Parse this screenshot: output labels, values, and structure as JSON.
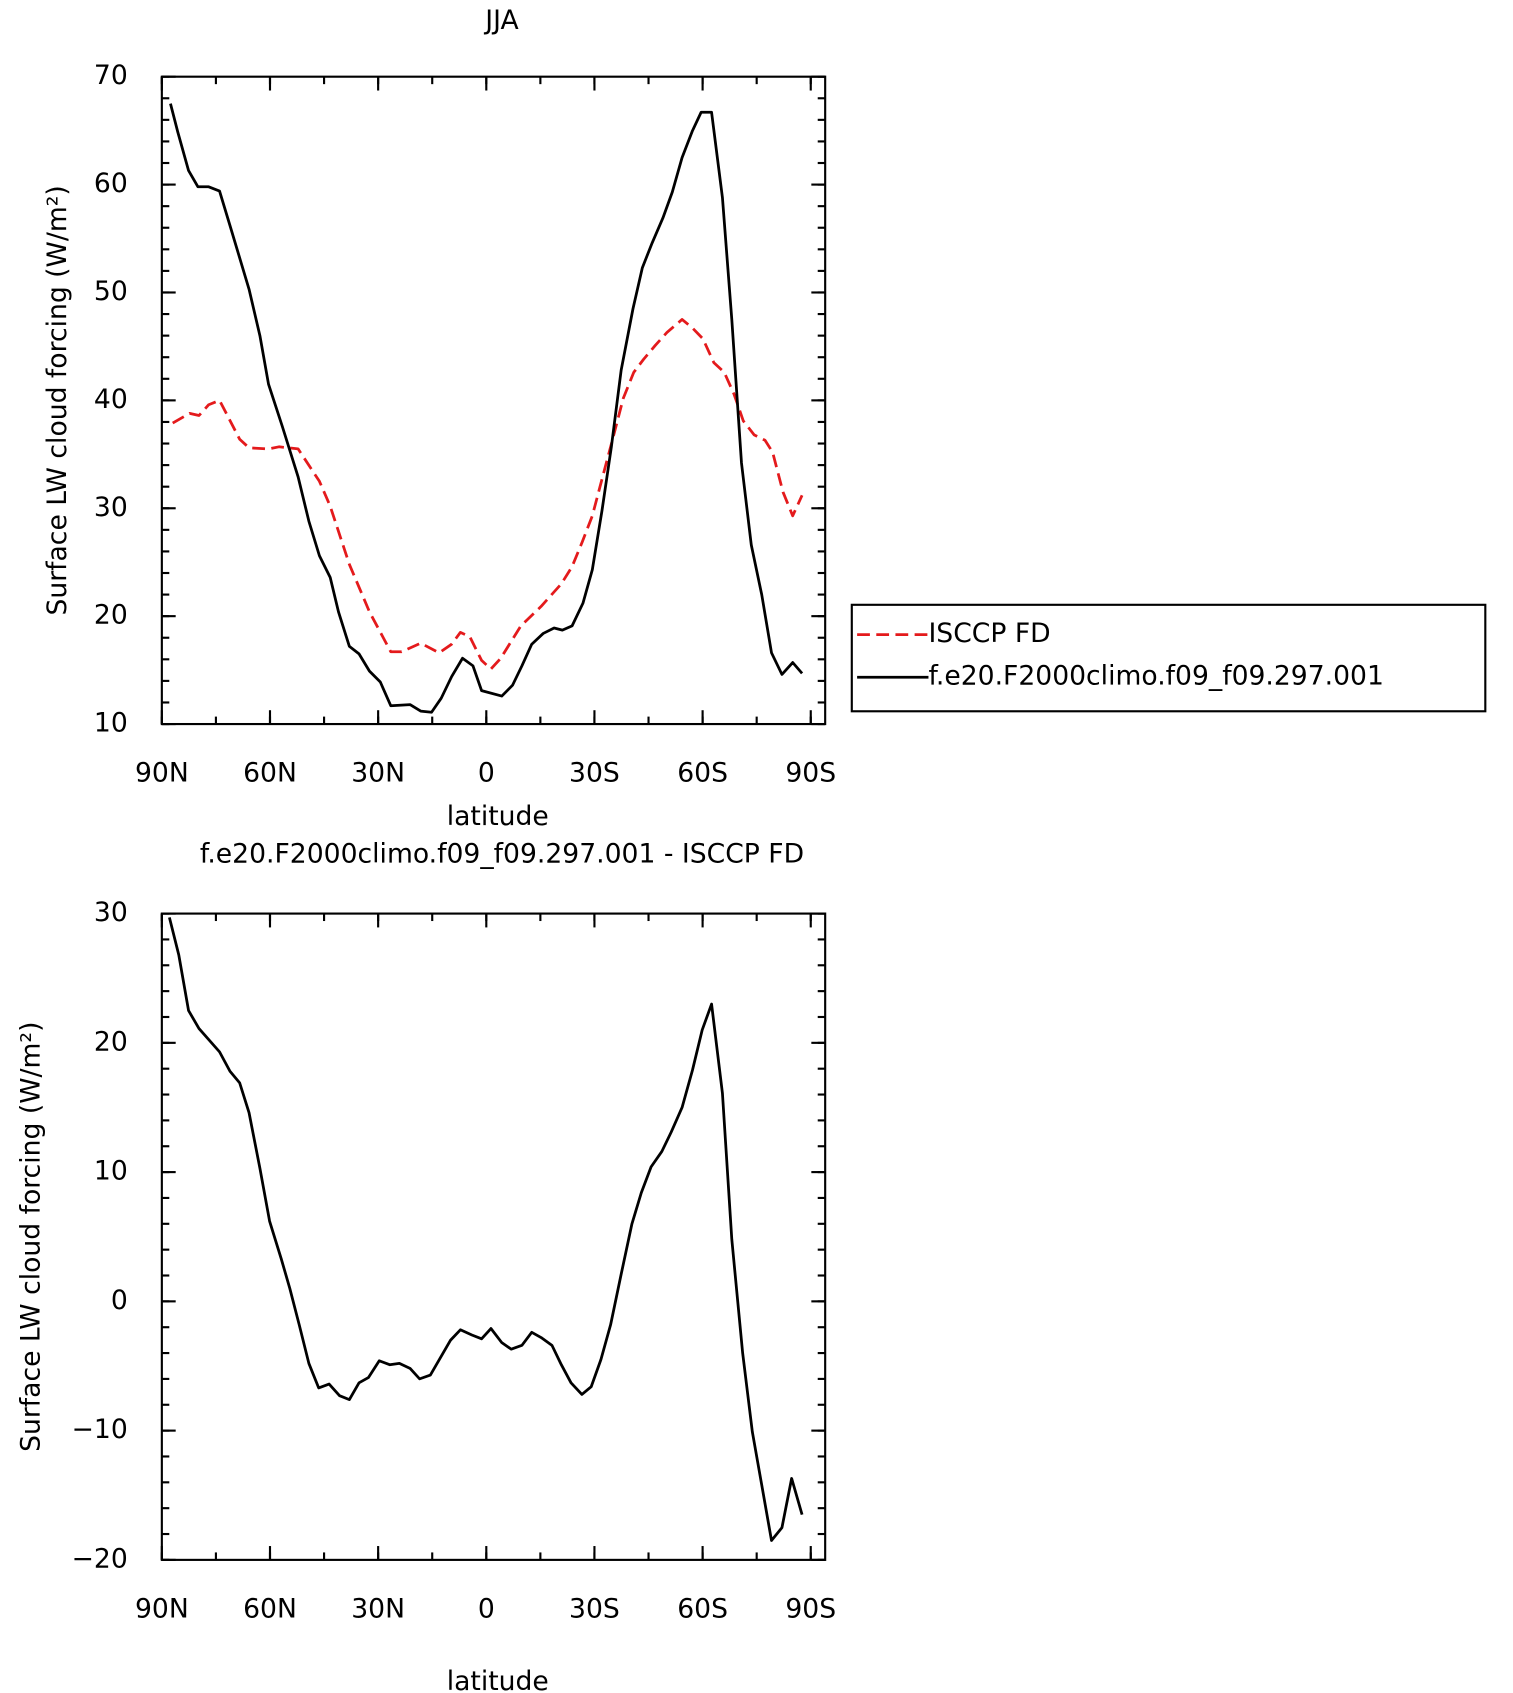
{
  "chart_data": [
    {
      "type": "line",
      "title": "JJA",
      "xlabel": "latitude",
      "ylabel": "Surface LW cloud forcing (W/m²)",
      "xlim": [
        90,
        -94
      ],
      "ylim": [
        10,
        70
      ],
      "xticks": [
        {
          "value": 90,
          "label": "90N"
        },
        {
          "value": 60,
          "label": "60N"
        },
        {
          "value": 30,
          "label": "30N"
        },
        0,
        {
          "value": -30,
          "label": "30S"
        },
        {
          "value": -60,
          "label": "60S"
        },
        {
          "value": -90,
          "label": "90S"
        }
      ],
      "yticks": [
        10,
        20,
        30,
        40,
        50,
        60,
        70
      ],
      "x_minor_step": 15,
      "y_minor_step": 2,
      "legend": "right",
      "series": [
        {
          "name": "ISCCP FD",
          "color": "#e41a1c",
          "dash": "dashed",
          "x": [
            87.0,
            82.3,
            79.7,
            77.0,
            74.0,
            68.4,
            65.8,
            60.4,
            57.5,
            52.2,
            46.3,
            43.3,
            38.0,
            32.4,
            26.5,
            23.5,
            18.2,
            13.1,
            9.6,
            7.2,
            4.6,
            1.3,
            -1.3,
            -4.0,
            -9.6,
            -15.2,
            -20.8,
            -23.8,
            -26.5,
            -29.4,
            -32.1,
            -35.3,
            -38.0,
            -40.9,
            -43.6,
            -46.9,
            -50.1,
            -54.3,
            -57.2,
            -60.1,
            -63.1,
            -66.0,
            -68.7,
            -71.3,
            -74.3,
            -77.3,
            -79.4,
            -82.3,
            -85.0,
            -87.6
          ],
          "values": [
            37.9,
            38.8,
            38.6,
            39.6,
            40.0,
            36.4,
            35.6,
            35.5,
            35.7,
            35.5,
            32.5,
            30.2,
            24.8,
            20.4,
            16.7,
            16.7,
            17.5,
            16.6,
            17.4,
            18.5,
            18.1,
            15.9,
            15.1,
            16.1,
            19.1,
            20.9,
            23.0,
            24.6,
            26.8,
            29.3,
            32.7,
            36.7,
            40.2,
            42.6,
            43.8,
            45.1,
            46.3,
            47.5,
            46.7,
            45.7,
            43.5,
            42.6,
            40.6,
            38.1,
            36.8,
            36.3,
            35.2,
            31.5,
            29.3,
            31.2
          ]
        },
        {
          "name": "f.e20.F2000climo.f09_f09.297.001",
          "color": "#000000",
          "dash": "solid",
          "x": [
            87.6,
            85.6,
            82.6,
            80.0,
            77.0,
            74.0,
            71.1,
            65.8,
            62.8,
            60.4,
            56.6,
            52.2,
            49.2,
            46.3,
            43.3,
            41.0,
            38.0,
            35.3,
            32.4,
            29.4,
            26.5,
            21.1,
            18.2,
            15.2,
            12.5,
            9.6,
            6.6,
            3.7,
            1.3,
            -4.3,
            -7.3,
            -9.9,
            -12.6,
            -15.8,
            -18.8,
            -21.1,
            -23.8,
            -26.8,
            -29.4,
            -32.1,
            -34.7,
            -37.4,
            -40.7,
            -43.3,
            -46.0,
            -49.0,
            -51.6,
            -54.3,
            -57.2,
            -59.6,
            -62.5,
            -65.5,
            -68.1,
            -70.8,
            -73.5,
            -76.4,
            -79.1,
            -82.0,
            -85.0,
            -87.6
          ],
          "values": [
            67.5,
            64.9,
            61.3,
            59.8,
            59.8,
            59.4,
            56.2,
            50.3,
            46.0,
            41.5,
            37.6,
            32.9,
            28.8,
            25.6,
            23.6,
            20.4,
            17.2,
            16.5,
            14.9,
            13.9,
            11.7,
            11.8,
            11.2,
            11.1,
            12.4,
            14.4,
            16.1,
            15.4,
            13.1,
            12.6,
            13.6,
            15.4,
            17.4,
            18.4,
            18.9,
            18.7,
            19.1,
            21.2,
            24.3,
            29.8,
            35.7,
            42.8,
            48.5,
            52.3,
            54.6,
            56.9,
            59.3,
            62.5,
            65.0,
            66.7,
            66.7,
            58.8,
            47.5,
            34.2,
            26.6,
            22.0,
            16.6,
            14.6,
            15.7,
            14.7
          ]
        }
      ]
    },
    {
      "type": "line",
      "title": "f.e20.F2000climo.f09_f09.297.001 - ISCCP FD",
      "xlabel": "latitude",
      "ylabel": "Surface LW cloud forcing (W/m²)",
      "xlim": [
        90,
        -94
      ],
      "ylim": [
        -20,
        30
      ],
      "xticks": [
        {
          "value": 90,
          "label": "90N"
        },
        {
          "value": 60,
          "label": "60N"
        },
        {
          "value": 30,
          "label": "30N"
        },
        0,
        {
          "value": -30,
          "label": "30S"
        },
        {
          "value": -60,
          "label": "60S"
        },
        {
          "value": -90,
          "label": "90S"
        }
      ],
      "yticks": [
        {
          "value": -20,
          "label": "−20"
        },
        {
          "value": -10,
          "label": "−10"
        },
        0,
        10,
        20,
        30
      ],
      "x_minor_step": 15,
      "y_minor_step": 2,
      "series": [
        {
          "color": "#000000",
          "dash": "solid",
          "x": [
            87.9,
            85.3,
            82.6,
            79.7,
            74.0,
            71.1,
            68.4,
            65.8,
            62.8,
            60.1,
            56.9,
            54.5,
            51.9,
            49.2,
            46.5,
            43.6,
            40.7,
            38.0,
            35.3,
            32.7,
            29.7,
            26.8,
            24.1,
            21.1,
            18.5,
            15.5,
            9.9,
            7.2,
            4.0,
            1.3,
            -1.3,
            -4.3,
            -6.9,
            -9.9,
            -12.6,
            -15.2,
            -18.2,
            -20.8,
            -23.5,
            -26.5,
            -29.1,
            -31.8,
            -34.5,
            -37.4,
            -40.4,
            -43.0,
            -45.7,
            -48.7,
            -51.3,
            -54.3,
            -57.2,
            -59.9,
            -62.5,
            -65.5,
            -68.1,
            -71.1,
            -73.8,
            -76.4,
            -79.1,
            -82.0,
            -84.7,
            -87.6
          ],
          "values": [
            29.7,
            26.8,
            22.5,
            21.1,
            19.3,
            17.8,
            16.9,
            14.6,
            10.3,
            6.2,
            3.3,
            1.0,
            -1.8,
            -4.8,
            -6.7,
            -6.4,
            -7.3,
            -7.6,
            -6.3,
            -5.9,
            -4.6,
            -4.9,
            -4.8,
            -5.2,
            -6.0,
            -5.7,
            -3.0,
            -2.2,
            -2.6,
            -2.9,
            -2.1,
            -3.2,
            -3.7,
            -3.4,
            -2.4,
            -2.8,
            -3.4,
            -4.9,
            -6.3,
            -7.2,
            -6.6,
            -4.5,
            -1.8,
            2.1,
            6.0,
            8.4,
            10.4,
            11.6,
            13.1,
            15.0,
            17.9,
            21.0,
            23.0,
            16.1,
            4.8,
            -4.0,
            -10.1,
            -14.2,
            -18.5,
            -17.5,
            -13.7,
            -16.5
          ]
        }
      ]
    }
  ]
}
